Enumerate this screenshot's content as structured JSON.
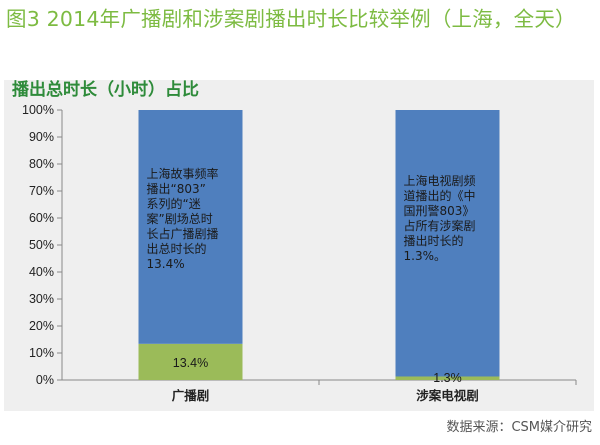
{
  "figure_title": "图3  2014年广播剧和涉案剧播出时长比较举例（上海，全天）",
  "source": "数据来源：CSM媒介研究",
  "colors": {
    "title": "#7dbb42",
    "chart_title": "#2e8b3a",
    "bar_blue": "#4f7fbe",
    "bar_green": "#9bbb59",
    "panel": "#efefef"
  },
  "chart_data": {
    "type": "bar",
    "stacked": true,
    "title": "播出总时长（小时）占比",
    "categories": [
      "广播剧",
      "涉案电视剧"
    ],
    "y_ticks": [
      "0%",
      "10%",
      "20%",
      "30%",
      "40%",
      "50%",
      "60%",
      "70%",
      "80%",
      "90%",
      "100%"
    ],
    "ylim": [
      0,
      100
    ],
    "series": [
      {
        "values": [
          13.4,
          1.3
        ],
        "color": "#9bbb59",
        "labels": [
          "13.4%",
          "1.3%"
        ]
      },
      {
        "values": [
          86.6,
          98.7
        ],
        "color": "#4f7fbe"
      }
    ],
    "annotations": [
      {
        "category": "广播剧",
        "lines": [
          "上海故事频率",
          "播出“803”",
          "系列的“迷",
          "案”剧场总时",
          "长占广播剧播",
          "出总时长的",
          "13.4%"
        ]
      },
      {
        "category": "涉案电视剧",
        "lines": [
          "上海电视剧频",
          "道播出的《中",
          "国刑警803》",
          "占所有涉案剧",
          "播出时长的",
          "1.3%。"
        ]
      }
    ]
  }
}
